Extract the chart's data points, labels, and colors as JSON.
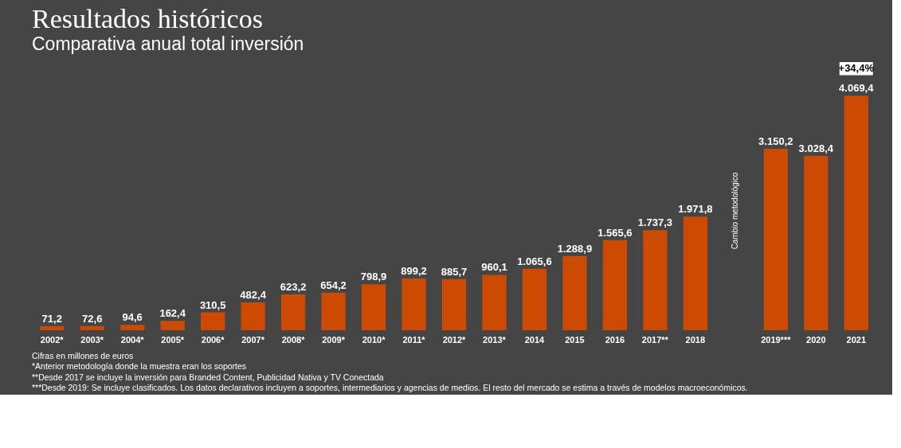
{
  "chart_data": {
    "type": "bar",
    "title": "Resultados históricos",
    "subtitle": "Comparativa anual total inversión",
    "categories": [
      "2002*",
      "2003*",
      "2004*",
      "2005*",
      "2006*",
      "2007*",
      "2008*",
      "2009*",
      "2010*",
      "2011*",
      "2012*",
      "2013*",
      "2014",
      "2015",
      "2016",
      "2017**",
      "2018",
      null,
      "2019***",
      "2020",
      "2021"
    ],
    "values": [
      71.2,
      72.6,
      94.6,
      162.4,
      310.5,
      482.4,
      623.2,
      654.2,
      798.9,
      899.2,
      885.7,
      960.1,
      1065.6,
      1288.9,
      1565.6,
      1737.3,
      1971.8,
      null,
      3150.2,
      3028.4,
      4069.4
    ],
    "value_labels": [
      "71,2",
      "72,6",
      "94,6",
      "162,4",
      "310,5",
      "482,4",
      "623,2",
      "654,2",
      "798,9",
      "899,2",
      "885,7",
      "960,1",
      "1.065,6",
      "1.288,9",
      "1.565,6",
      "1.737,3",
      "1.971,8",
      null,
      "3.150,2",
      "3.028,4",
      "4.069,4"
    ],
    "color": "#cc4a02",
    "grid": false,
    "annotations": [
      {
        "text": "Cambio metodológico"
      },
      {
        "text": "+34,4%",
        "x": "2021",
        "y": 4069.4
      },
      "Cifras en millones de euros",
      "*Anterior metodología donde la muestra eran los soportes",
      "**Desde 2017 se incluye la inversión para Branded Content, Publicidad Nativa y TV Conectada",
      "***Desde 2019: Se incluye clasificados. Los datos declarativos incluyen a soportes, intermediarios y agencias de medios. El resto del mercado se estima a través de modelos macroeconómicos."
    ]
  }
}
